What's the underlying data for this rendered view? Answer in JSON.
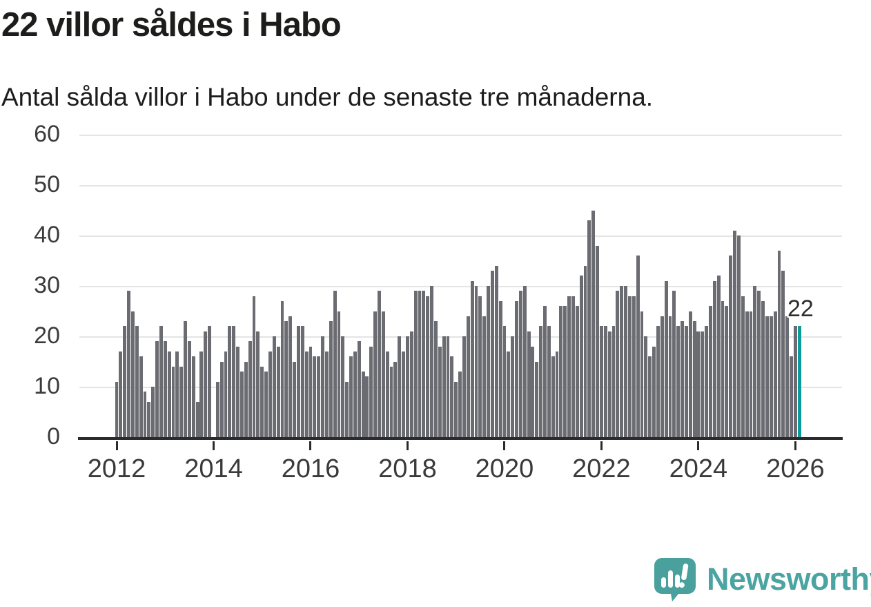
{
  "title": "22 villor såldes i Habo",
  "subtitle": "Antal sålda villor i Habo under de senaste tre månaderna.",
  "chart_data": {
    "type": "bar",
    "title": "22 villor såldes i Habo",
    "subtitle": "Antal sålda villor i Habo under de senaste tre månaderna.",
    "x_unit": "month",
    "x_start": "2012-01",
    "x_end": "2026-02",
    "x_tick_labels": [
      "2012",
      "2014",
      "2016",
      "2018",
      "2020",
      "2022",
      "2024",
      "2026"
    ],
    "y_ticks": [
      0,
      10,
      20,
      30,
      40,
      50,
      60
    ],
    "ylim": [
      0,
      62
    ],
    "grid": true,
    "legend": false,
    "bar_color": "#6b6b72",
    "highlight_color": "#0d9b9b",
    "values": [
      11,
      17,
      22,
      29,
      25,
      22,
      16,
      9,
      7,
      10,
      19,
      22,
      19,
      17,
      14,
      17,
      14,
      23,
      19,
      16,
      7,
      17,
      21,
      22,
      0,
      11,
      15,
      17,
      22,
      22,
      18,
      13,
      15,
      19,
      28,
      21,
      14,
      13,
      17,
      20,
      18,
      27,
      23,
      24,
      15,
      22,
      22,
      17,
      18,
      16,
      16,
      20,
      17,
      23,
      29,
      25,
      20,
      11,
      16,
      17,
      19,
      13,
      12,
      18,
      25,
      29,
      25,
      17,
      14,
      15,
      20,
      17,
      20,
      21,
      29,
      29,
      29,
      28,
      30,
      23,
      18,
      20,
      20,
      16,
      11,
      13,
      20,
      24,
      31,
      30,
      28,
      24,
      30,
      33,
      34,
      27,
      22,
      17,
      20,
      27,
      29,
      30,
      21,
      18,
      15,
      22,
      26,
      22,
      16,
      17,
      26,
      26,
      28,
      28,
      26,
      32,
      34,
      43,
      45,
      38,
      22,
      22,
      21,
      22,
      29,
      30,
      30,
      28,
      28,
      36,
      25,
      20,
      16,
      18,
      22,
      24,
      31,
      24,
      29,
      22,
      23,
      22,
      25,
      23,
      21,
      21,
      22,
      26,
      31,
      32,
      27,
      26,
      36,
      41,
      40,
      28,
      25,
      25,
      30,
      29,
      27,
      24,
      24,
      25,
      37,
      33,
      24,
      16,
      22,
      22
    ],
    "highlight": {
      "index": 169,
      "value": 22,
      "label": "22"
    }
  },
  "logo": {
    "text": "Newsworthy",
    "text_color": "#4ba4a1",
    "icon_color": "#4aa09d",
    "icon": "speech-bubble-bar-chart-icon"
  }
}
